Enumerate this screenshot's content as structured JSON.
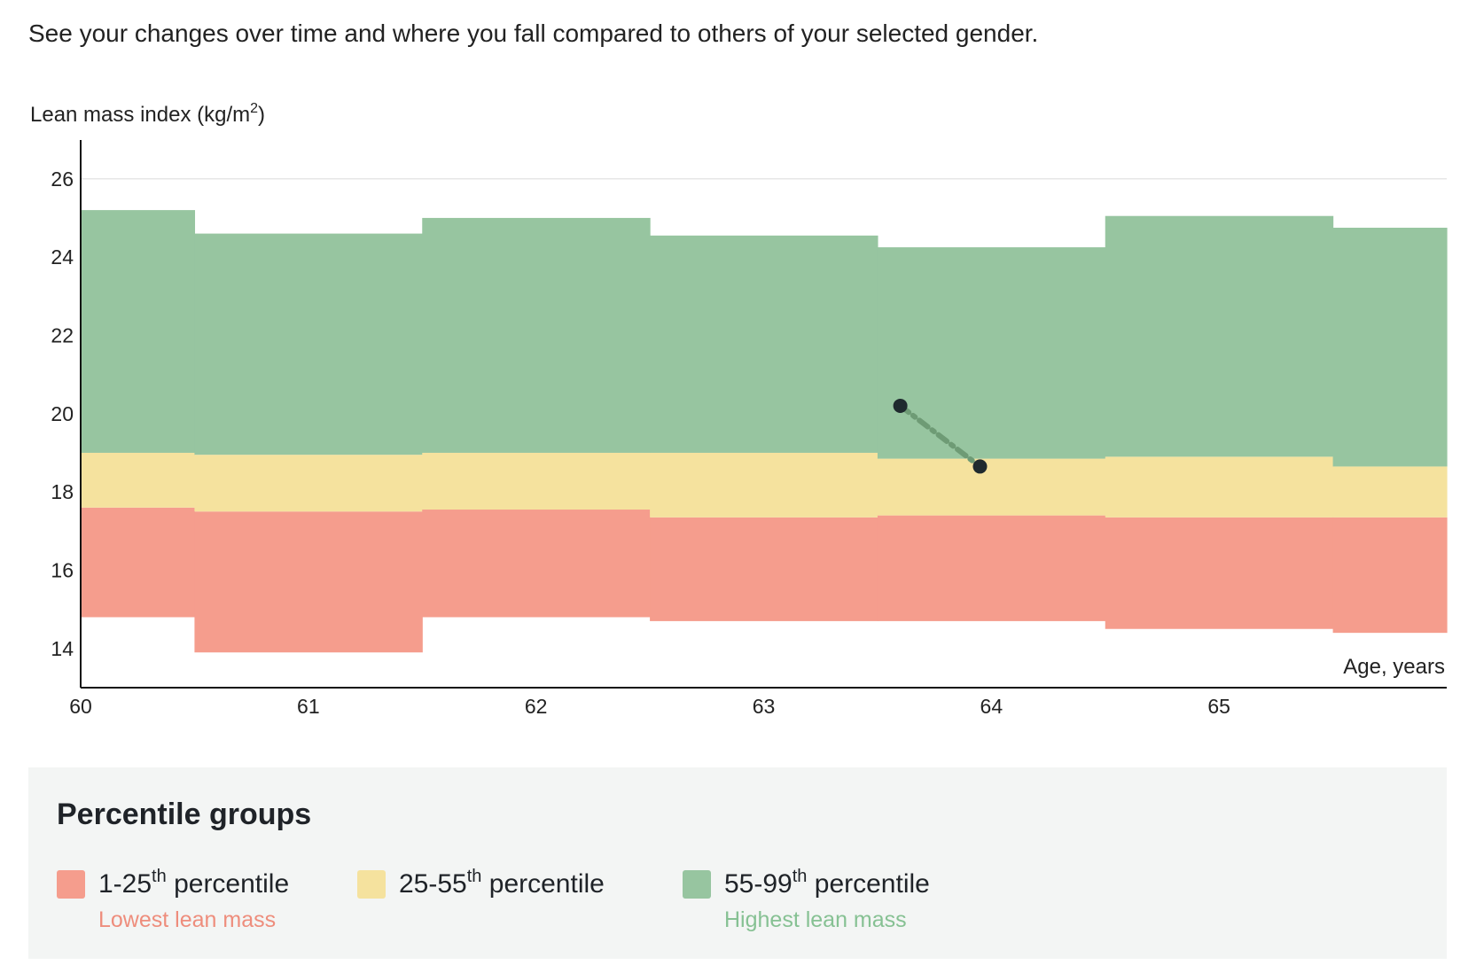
{
  "intro_text": "See your changes over time and where you fall compared to others of your selected gender.",
  "chart_data": {
    "type": "area",
    "title": "",
    "ylabel_main": "Lean mass index (kg/m",
    "ylabel_sup": "2",
    "ylabel_close": ")",
    "xlabel": "Age, years",
    "xlim": [
      60,
      66
    ],
    "ylim": [
      13,
      26.9
    ],
    "yticks": [
      14,
      16,
      18,
      20,
      22,
      24,
      26
    ],
    "ytick_labels": [
      "14",
      "16",
      "18",
      "20",
      "22",
      "24",
      "26"
    ],
    "xticks": [
      60,
      61,
      62,
      63,
      64,
      65
    ],
    "xtick_labels": [
      "60",
      "61",
      "62",
      "63",
      "64",
      "65"
    ],
    "grid": "y-top-line",
    "bands": {
      "age_edges": [
        60,
        60.5,
        61.5,
        62.5,
        63.5,
        64.5,
        65.5,
        66
      ],
      "p1": [
        14.8,
        13.9,
        14.8,
        14.7,
        14.7,
        14.5,
        14.4
      ],
      "p25": [
        17.6,
        17.5,
        17.55,
        17.35,
        17.4,
        17.35,
        17.35
      ],
      "p55": [
        19.0,
        18.95,
        19.0,
        19.0,
        18.85,
        18.9,
        18.65
      ],
      "p99": [
        25.2,
        24.6,
        25.0,
        24.55,
        24.25,
        25.05,
        24.75
      ]
    },
    "series": [
      {
        "x": [
          63.6,
          63.95
        ],
        "y": [
          20.2,
          18.65
        ]
      }
    ]
  },
  "colors": {
    "low": "#f59d8d",
    "mid": "#f5e29e",
    "high": "#97c5a0",
    "line": "#6e9b75",
    "point": "#1f2a2e",
    "low_text": "#ee8d7c",
    "high_text": "#86c193",
    "axis": "#111111"
  },
  "legend": {
    "title": "Percentile groups",
    "items": [
      {
        "label_pre": "1-25",
        "label_sup": "th",
        "label_post": " percentile",
        "sub": "Lowest lean mass",
        "color": "#f59d8d"
      },
      {
        "label_pre": "25-55",
        "label_sup": "th",
        "label_post": " percentile",
        "sub": "",
        "color": "#f5e29e"
      },
      {
        "label_pre": "55-99",
        "label_sup": "th",
        "label_post": " percentile",
        "sub": "Highest lean mass",
        "color": "#97c5a0"
      }
    ]
  }
}
